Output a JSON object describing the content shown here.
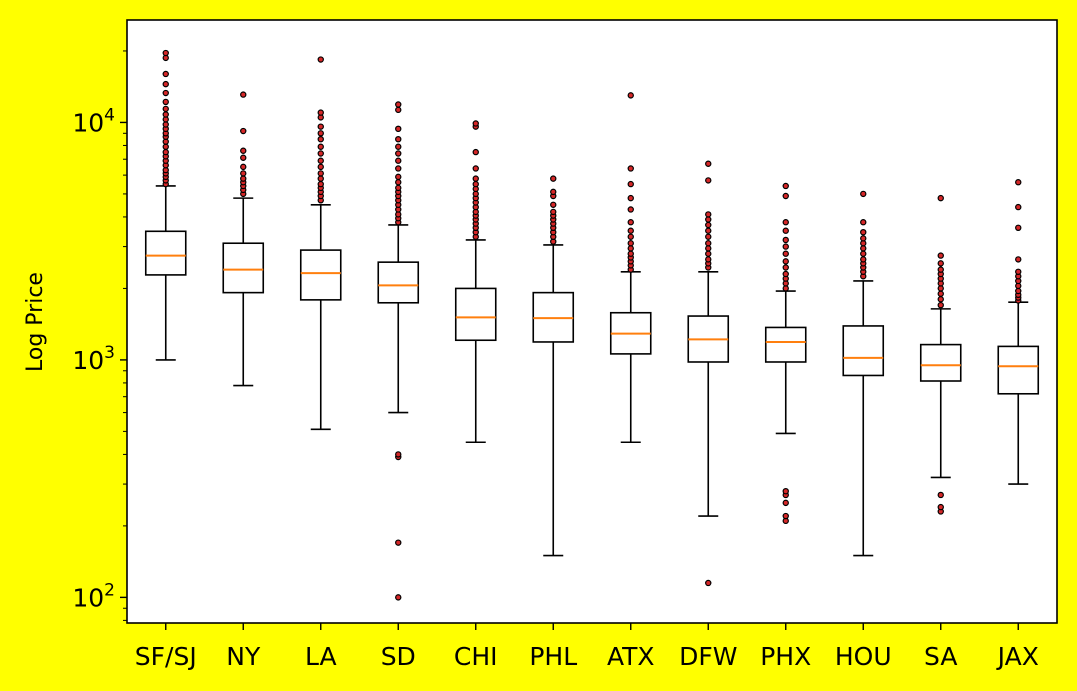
{
  "chart_data": {
    "type": "box",
    "title": "",
    "xlabel": "",
    "ylabel": "Log Price",
    "y_scale": "log",
    "ylim": [
      78,
      27000
    ],
    "y_ticks": [
      100,
      1000,
      10000
    ],
    "y_tick_labels": [
      "10^2",
      "10^3",
      "10^4"
    ],
    "grid": false,
    "colors": {
      "background": "#ffff00",
      "plot_background": "#ffffff",
      "box": "#000000",
      "median": "#ff7f0e",
      "outlier_fill": "#d62728",
      "outlier_edge": "#000000"
    },
    "categories": [
      "SF/SJ",
      "NY",
      "LA",
      "SD",
      "CHI",
      "PHL",
      "ATX",
      "DFW",
      "PHX",
      "HOU",
      "SA",
      "JAX"
    ],
    "boxes": [
      {
        "whisker_low": 1000,
        "q1": 2280,
        "median": 2750,
        "q3": 3480,
        "whisker_high": 5400,
        "outliers": [
          5500,
          5700,
          5900,
          6100,
          6300,
          6600,
          6900,
          7200,
          7500,
          7900,
          8300,
          8700,
          9000,
          9400,
          9800,
          10300,
          10800,
          11400,
          12200,
          13300,
          14500,
          16000,
          18700,
          19600
        ]
      },
      {
        "whisker_low": 780,
        "q1": 1920,
        "median": 2400,
        "q3": 3100,
        "whisker_high": 4800,
        "outliers": [
          5000,
          5200,
          5400,
          5600,
          5800,
          6100,
          6500,
          7100,
          7600,
          9200,
          13100
        ]
      },
      {
        "whisker_low": 510,
        "q1": 1790,
        "median": 2320,
        "q3": 2900,
        "whisker_high": 4500,
        "outliers": [
          4700,
          4900,
          5100,
          5300,
          5500,
          5800,
          6100,
          6500,
          6900,
          7400,
          7900,
          8500,
          9000,
          9600,
          10500,
          11000,
          18400
        ]
      },
      {
        "whisker_low": 600,
        "q1": 1740,
        "median": 2060,
        "q3": 2580,
        "whisker_high": 3700,
        "outliers": [
          100,
          170,
          390,
          400,
          3800,
          3950,
          4100,
          4300,
          4500,
          4700,
          4900,
          5100,
          5300,
          5600,
          5900,
          6400,
          6900,
          7400,
          7900,
          8500,
          9400,
          11300,
          11900
        ]
      },
      {
        "whisker_low": 450,
        "q1": 1210,
        "median": 1510,
        "q3": 2000,
        "whisker_high": 3200,
        "outliers": [
          3300,
          3450,
          3600,
          3750,
          3900,
          4050,
          4200,
          4400,
          4600,
          4800,
          5000,
          5250,
          5500,
          5800,
          6400,
          7500,
          9600,
          9900
        ]
      },
      {
        "whisker_low": 150,
        "q1": 1190,
        "median": 1500,
        "q3": 1920,
        "whisker_high": 3050,
        "outliers": [
          3150,
          3300,
          3450,
          3600,
          3750,
          3900,
          4050,
          4200,
          4500,
          4900,
          5100,
          5800
        ]
      },
      {
        "whisker_low": 450,
        "q1": 1060,
        "median": 1290,
        "q3": 1580,
        "whisker_high": 2350,
        "outliers": [
          2400,
          2500,
          2600,
          2700,
          2800,
          2950,
          3100,
          3300,
          3500,
          3800,
          4300,
          4800,
          5500,
          6400,
          13000
        ]
      },
      {
        "whisker_low": 220,
        "q1": 980,
        "median": 1220,
        "q3": 1530,
        "whisker_high": 2350,
        "outliers": [
          115,
          2450,
          2550,
          2650,
          2800,
          2950,
          3100,
          3300,
          3500,
          3700,
          3900,
          4100,
          5700,
          6700
        ]
      },
      {
        "whisker_low": 490,
        "q1": 980,
        "median": 1190,
        "q3": 1370,
        "whisker_high": 1950,
        "outliers": [
          210,
          220,
          250,
          270,
          280,
          2000,
          2100,
          2200,
          2300,
          2450,
          2600,
          2800,
          3000,
          3200,
          3500,
          3800,
          4900,
          5400
        ]
      },
      {
        "whisker_low": 150,
        "q1": 860,
        "median": 1020,
        "q3": 1390,
        "whisker_high": 2150,
        "outliers": [
          2250,
          2350,
          2450,
          2550,
          2650,
          2800,
          2950,
          3100,
          3250,
          3450,
          3800,
          5000
        ]
      },
      {
        "whisker_low": 320,
        "q1": 815,
        "median": 950,
        "q3": 1160,
        "whisker_high": 1640,
        "outliers": [
          230,
          240,
          270,
          1700,
          1800,
          1900,
          2000,
          2100,
          2200,
          2300,
          2400,
          2550,
          2750,
          4800
        ]
      },
      {
        "whisker_low": 300,
        "q1": 720,
        "median": 940,
        "q3": 1140,
        "whisker_high": 1750,
        "outliers": [
          1780,
          1830,
          1880,
          1950,
          2050,
          2150,
          2250,
          2350,
          2650,
          3600,
          4400,
          5600
        ]
      }
    ]
  }
}
